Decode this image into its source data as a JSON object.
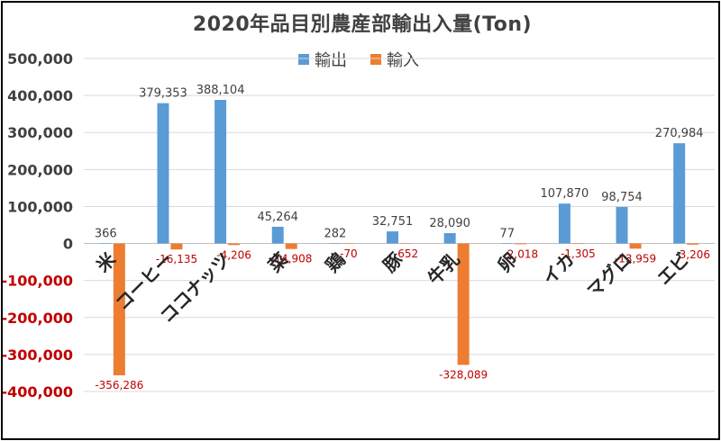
{
  "colors": {
    "export": "#5B9BD5",
    "import": "#ED7D31",
    "grid": "#d9d9d9",
    "axis_text": "#404040",
    "negative_text": "#c00000"
  },
  "chart_data": {
    "type": "bar",
    "title": "2020年品目別農産部輸出入量(Ton)",
    "categories": [
      "米",
      "コーヒー",
      "ココナッツ",
      "菜",
      "鶏",
      "豚",
      "牛乳",
      "卵",
      "イカ",
      "マグロ",
      "エビ"
    ],
    "series": [
      {
        "name": "輸出",
        "values": [
          366,
          379353,
          388104,
          45264,
          282,
          32751,
          28090,
          77,
          107870,
          98754,
          270984
        ]
      },
      {
        "name": "輸入",
        "values": [
          -356286,
          -16135,
          -4206,
          -14908,
          -70,
          -652,
          -328089,
          -2018,
          -1305,
          -13959,
          -3206
        ]
      }
    ],
    "data_labels": {
      "export": [
        "366",
        "379,353",
        "388,104",
        "45,264",
        "282",
        "32,751",
        "28,090",
        "77",
        "107,870",
        "98,754",
        "270,984"
      ],
      "import": [
        "-356,286",
        "-16,135",
        "-4,206",
        "-14,908",
        "-70",
        "-652",
        "-328,089",
        "-2,018",
        "-1,305",
        "-13,959",
        "-3,206"
      ]
    },
    "y_ticks": [
      500000,
      400000,
      300000,
      200000,
      100000,
      0,
      -100000,
      -200000,
      -300000,
      -400000
    ],
    "y_tick_labels": [
      "500,000",
      "400,000",
      "300,000",
      "200,000",
      "100,000",
      "0",
      "-100,000",
      "-200,000",
      "-300,000",
      "-400,000"
    ],
    "ylim": [
      -400000,
      500000
    ],
    "grid": true,
    "legend_position": "top"
  }
}
